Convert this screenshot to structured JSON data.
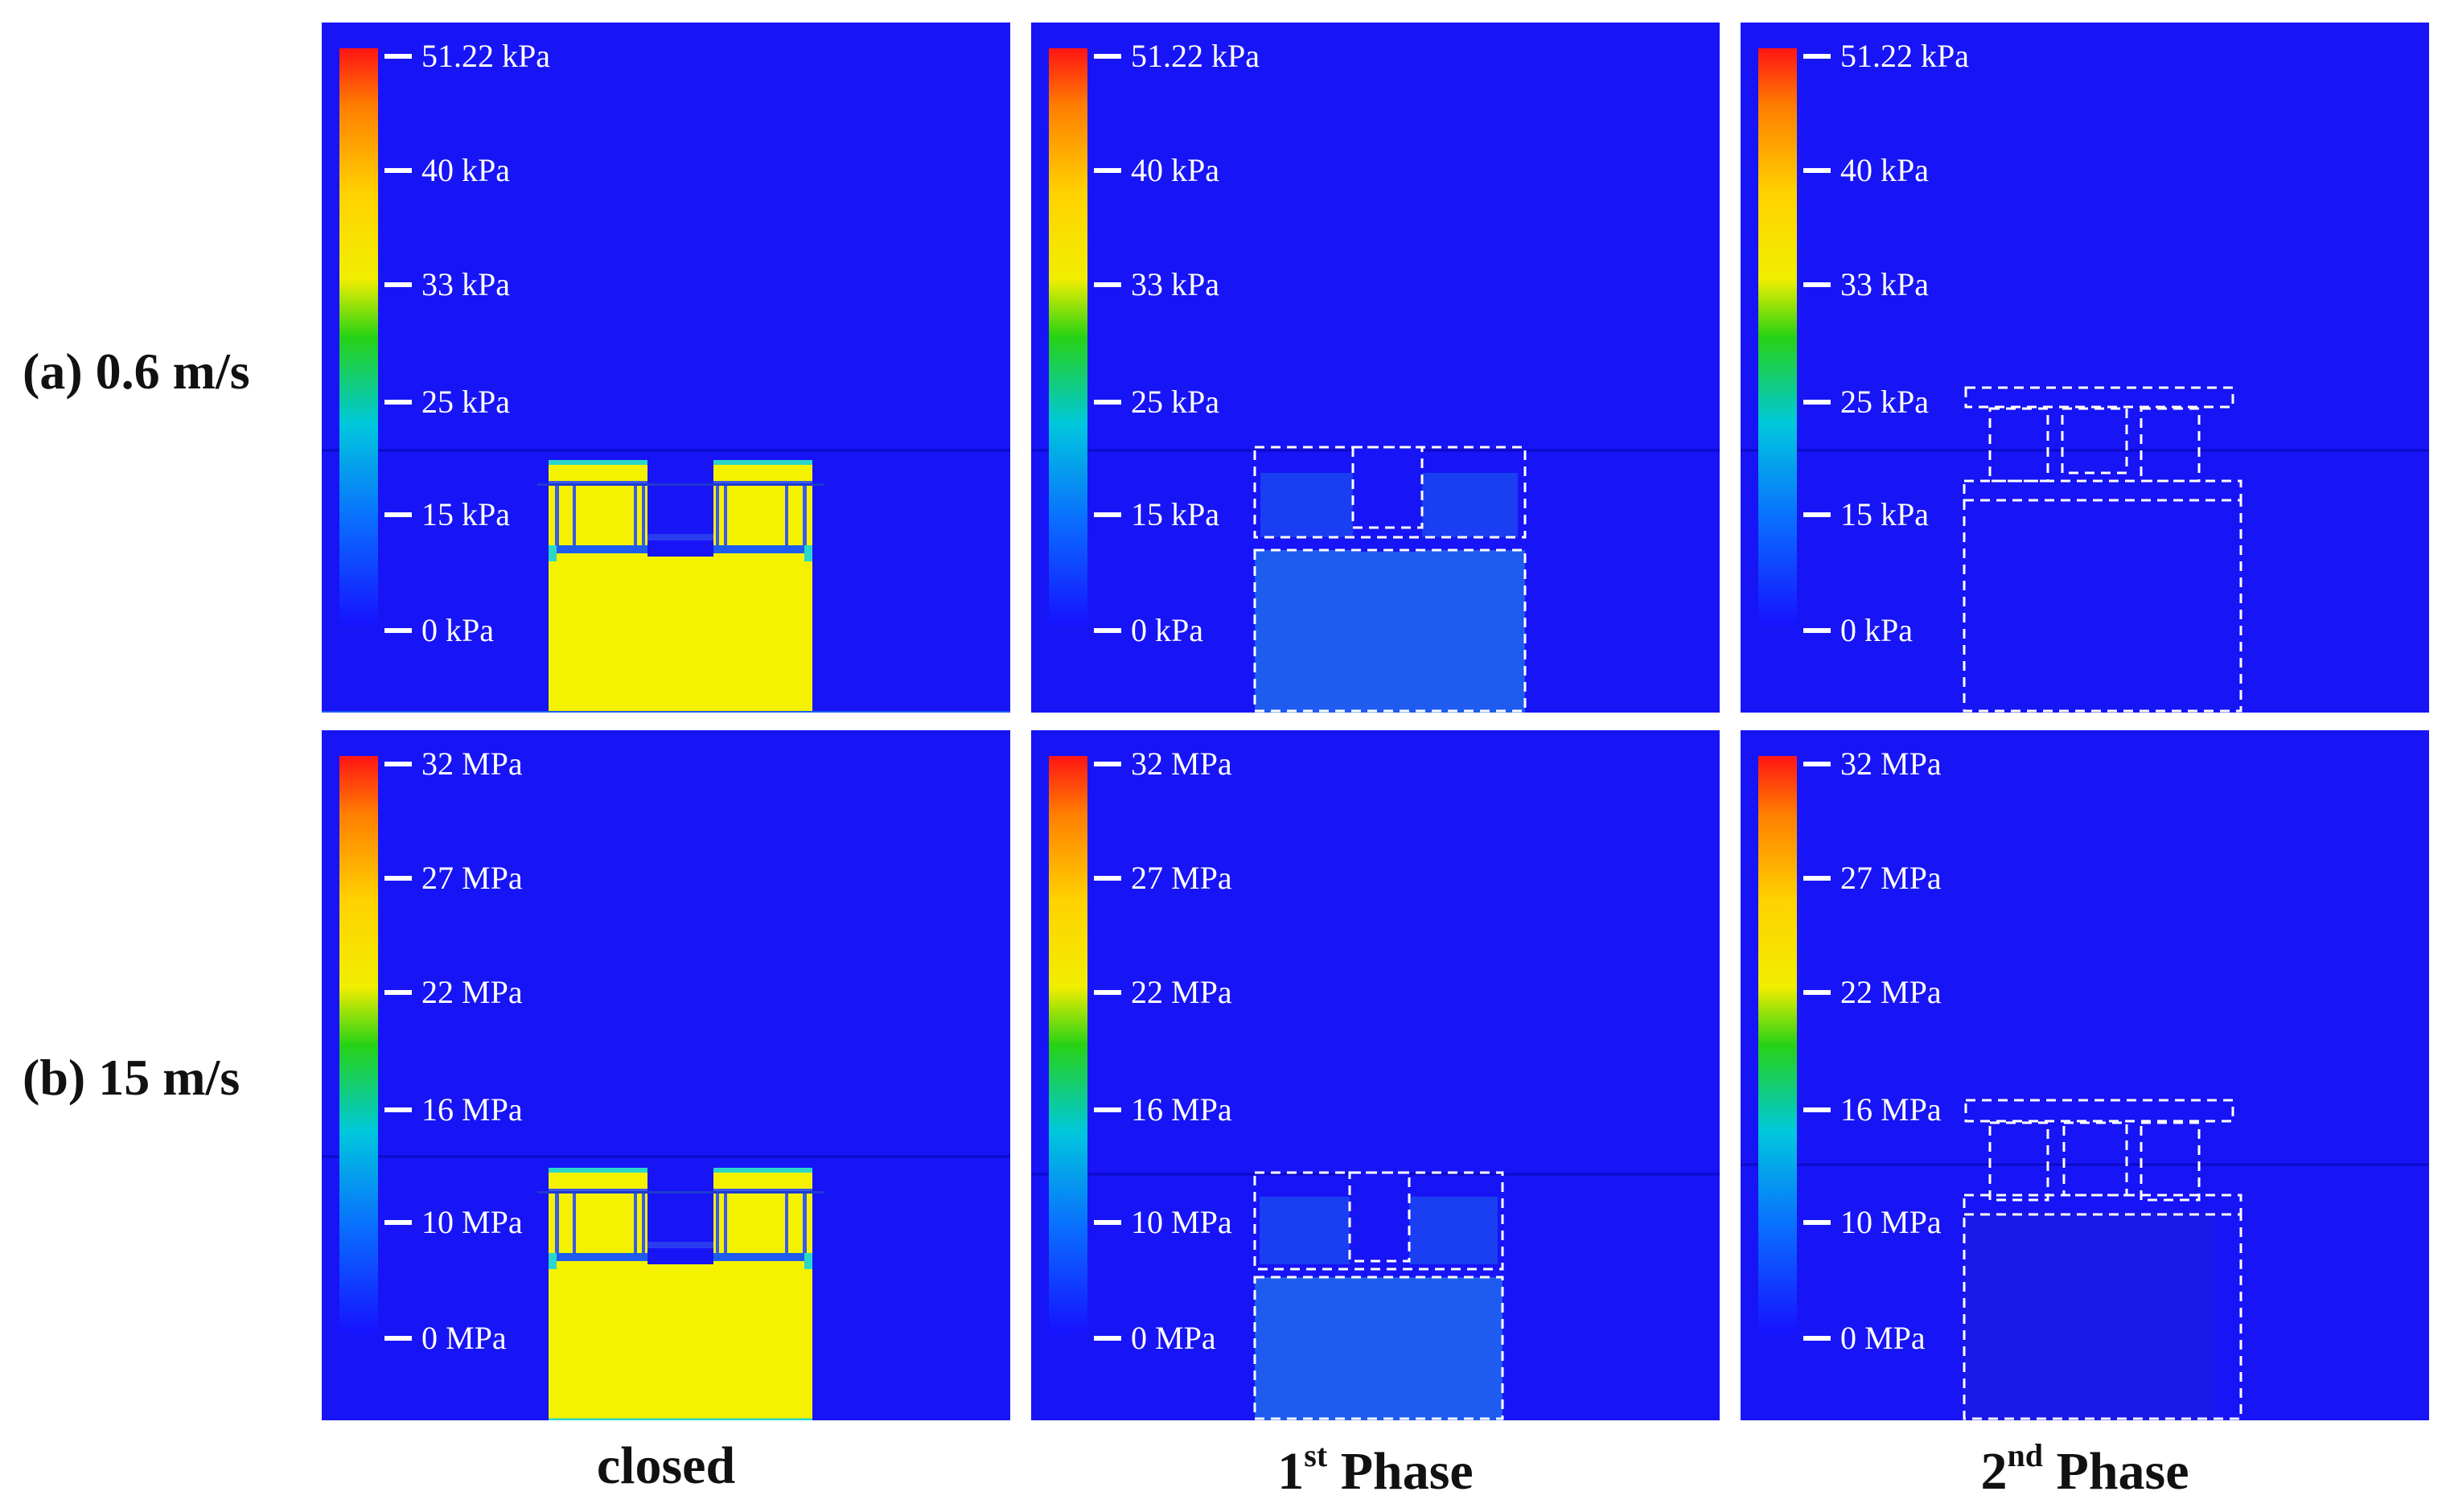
{
  "rows": [
    {
      "label": "(a) 0.6 m/s",
      "colorbar_labels": [
        "51.22 kPa",
        "40 kPa",
        "33 kPa",
        "25 kPa",
        "15 kPa",
        "0 kPa"
      ]
    },
    {
      "label": "(b) 15 m/s",
      "colorbar_labels": [
        "32 MPa",
        "27 MPa",
        "22 MPa",
        "16 MPa",
        "10 MPa",
        "0 MPa"
      ]
    }
  ],
  "columns": [
    {
      "label": "closed"
    },
    {
      "label_base": "1",
      "label_sup": "st",
      "label_rest": " Phase"
    },
    {
      "label_base": "2",
      "label_sup": "nd",
      "label_rest": " Phase"
    }
  ],
  "colors": {
    "background_field": "#1714f6",
    "high_pressure": "#f4f200",
    "low_pressure": "#1e5cf0",
    "outline": "#ffffff"
  }
}
